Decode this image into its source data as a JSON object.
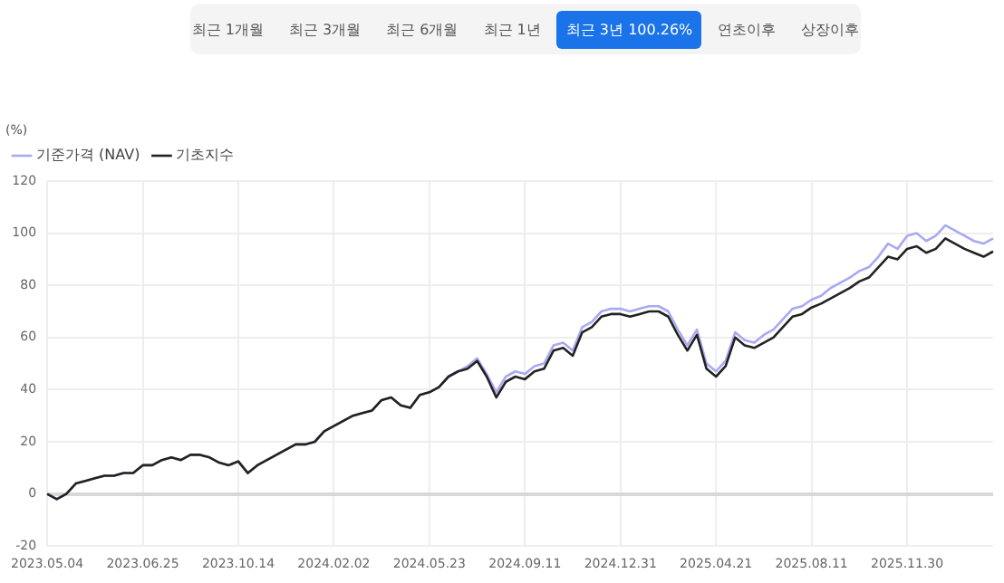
{
  "chart_data": {
    "type": "line",
    "ylabel": "(%)",
    "annotations": [
      "최근 1개월",
      "최근 3개월",
      "최근 6개월",
      "최근 1년",
      "최근 3년 100.26%",
      "연초이후",
      "상장이후"
    ],
    "categories": [
      "2023.05.04",
      null,
      null,
      null,
      null,
      null,
      null,
      null,
      null,
      null,
      "2023.06.25",
      null,
      null,
      null,
      null,
      null,
      null,
      null,
      null,
      null,
      "2023.10.14",
      null,
      null,
      null,
      null,
      null,
      null,
      null,
      null,
      null,
      "2024.02.02",
      null,
      null,
      null,
      null,
      null,
      null,
      null,
      null,
      null,
      "2024.05.23",
      null,
      null,
      null,
      null,
      null,
      null,
      null,
      null,
      null,
      "2024.09.11",
      null,
      null,
      null,
      null,
      null,
      null,
      null,
      null,
      null,
      "2024.12.31",
      null,
      null,
      null,
      null,
      null,
      null,
      null,
      null,
      null,
      "2025.04.21",
      null,
      null,
      null,
      null,
      null,
      null,
      null,
      null,
      null,
      "2025.08.11",
      null,
      null,
      null,
      null,
      null,
      null,
      null,
      null,
      null,
      "2025.11.30",
      null,
      null,
      null,
      null,
      null,
      null,
      null,
      null,
      null
    ],
    "series": [
      {
        "name": "기준가격 (NAV)",
        "color": "#a9a9f2",
        "values": [
          0,
          -2,
          0,
          4,
          5,
          6,
          7,
          7,
          8,
          8,
          11,
          11,
          13,
          14,
          13,
          15,
          15,
          14,
          12,
          11,
          12.5,
          8,
          11,
          13,
          15,
          17,
          19,
          19,
          20,
          24,
          26,
          28,
          30,
          31,
          32,
          36,
          37,
          34,
          33,
          38,
          39,
          41,
          45,
          47,
          49,
          52,
          46,
          39,
          45,
          47,
          46,
          49,
          50,
          57,
          58,
          55,
          64,
          66,
          70,
          71,
          71,
          70,
          71,
          72,
          72,
          70,
          63,
          57,
          63,
          50,
          47,
          51,
          62,
          59,
          58,
          61,
          63,
          67,
          71,
          72,
          74.5,
          76,
          79,
          81,
          83,
          85.5,
          87,
          91,
          96,
          94,
          99,
          100,
          97,
          99,
          103,
          101,
          99,
          97,
          96,
          98
        ]
      },
      {
        "name": "기초지수",
        "color": "#222222",
        "values": [
          0,
          -2,
          0,
          4,
          5,
          6,
          7,
          7,
          8,
          8,
          11,
          11,
          13,
          14,
          13,
          15,
          15,
          14,
          12,
          11,
          12.5,
          8,
          11,
          13,
          15,
          17,
          19,
          19,
          20,
          24,
          26,
          28,
          30,
          31,
          32,
          36,
          37,
          34,
          33,
          38,
          39,
          41,
          45,
          47,
          48,
          51,
          45,
          37,
          43,
          45,
          44,
          47,
          48,
          55,
          56,
          53,
          62,
          64,
          68,
          69,
          69,
          68,
          69,
          70,
          70,
          68,
          61,
          55,
          61,
          48,
          45,
          49,
          60,
          57,
          56,
          58,
          60,
          64,
          68,
          69,
          71.5,
          73,
          75,
          77,
          79,
          81.5,
          83,
          87,
          91,
          90,
          94,
          95,
          92.5,
          94,
          98,
          96,
          94,
          92.5,
          91,
          93
        ]
      }
    ],
    "ylim": [
      -20,
      120
    ],
    "yticks": [
      -20,
      0,
      20,
      40,
      60,
      80,
      100,
      120
    ],
    "grid": true,
    "legend": "top left",
    "marker": "none",
    "line_style": "solid"
  }
}
